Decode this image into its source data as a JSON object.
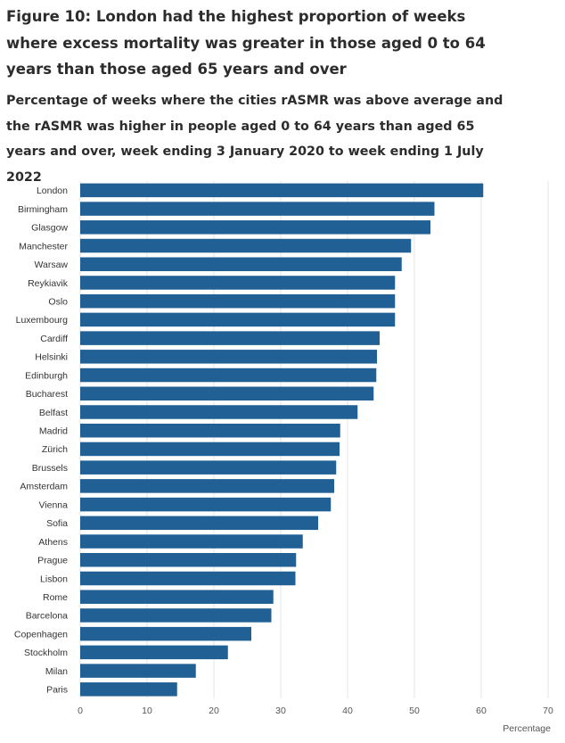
{
  "figure": {
    "title": "Figure 10: London had the highest proportion of weeks where excess mortality was greater in those aged 0 to 64 years than those aged 65 years and over",
    "subtitle": "Percentage of weeks where the cities rASMR was above average and the rASMR was higher in people aged 0 to 64 years than aged 65 years and over, week ending 3 January 2020 to week ending 1 July 2022"
  },
  "chart_data": {
    "type": "bar",
    "orientation": "horizontal",
    "title": "Percentage of weeks where the cities rASMR was above average and the rASMR was higher in people aged 0 to 64 years than aged 65 years and over, week ending 3 January 2020 to week ending 1 July 2022",
    "xlabel": "Percentage",
    "ylabel": "",
    "xlim": [
      0,
      70
    ],
    "x_ticks": [
      0,
      10,
      20,
      30,
      40,
      50,
      60,
      70
    ],
    "x_tick_labels": [
      "0",
      "10",
      "20",
      "30",
      "40",
      "50",
      "60",
      "70"
    ],
    "grid": true,
    "bar_color": "#206095",
    "categories": [
      "London",
      "Birmingham",
      "Glasgow",
      "Manchester",
      "Warsaw",
      "Reykiavik",
      "Oslo",
      "Luxembourg",
      "Cardiff",
      "Helsinki",
      "Edinburgh",
      "Bucharest",
      "Belfast",
      "Madrid",
      "Zürich",
      "Brussels",
      "Amsterdam",
      "Vienna",
      "Sofia",
      "Athens",
      "Prague",
      "Lisbon",
      "Rome",
      "Barcelona",
      "Copenhagen",
      "Stockholm",
      "Milan",
      "Paris"
    ],
    "values": [
      60.3,
      53.0,
      52.4,
      49.5,
      48.1,
      47.1,
      47.1,
      47.1,
      44.8,
      44.4,
      44.3,
      43.9,
      41.5,
      38.9,
      38.8,
      38.3,
      38.0,
      37.5,
      35.6,
      33.3,
      32.3,
      32.2,
      28.9,
      28.6,
      25.6,
      22.1,
      17.3,
      14.5
    ]
  }
}
